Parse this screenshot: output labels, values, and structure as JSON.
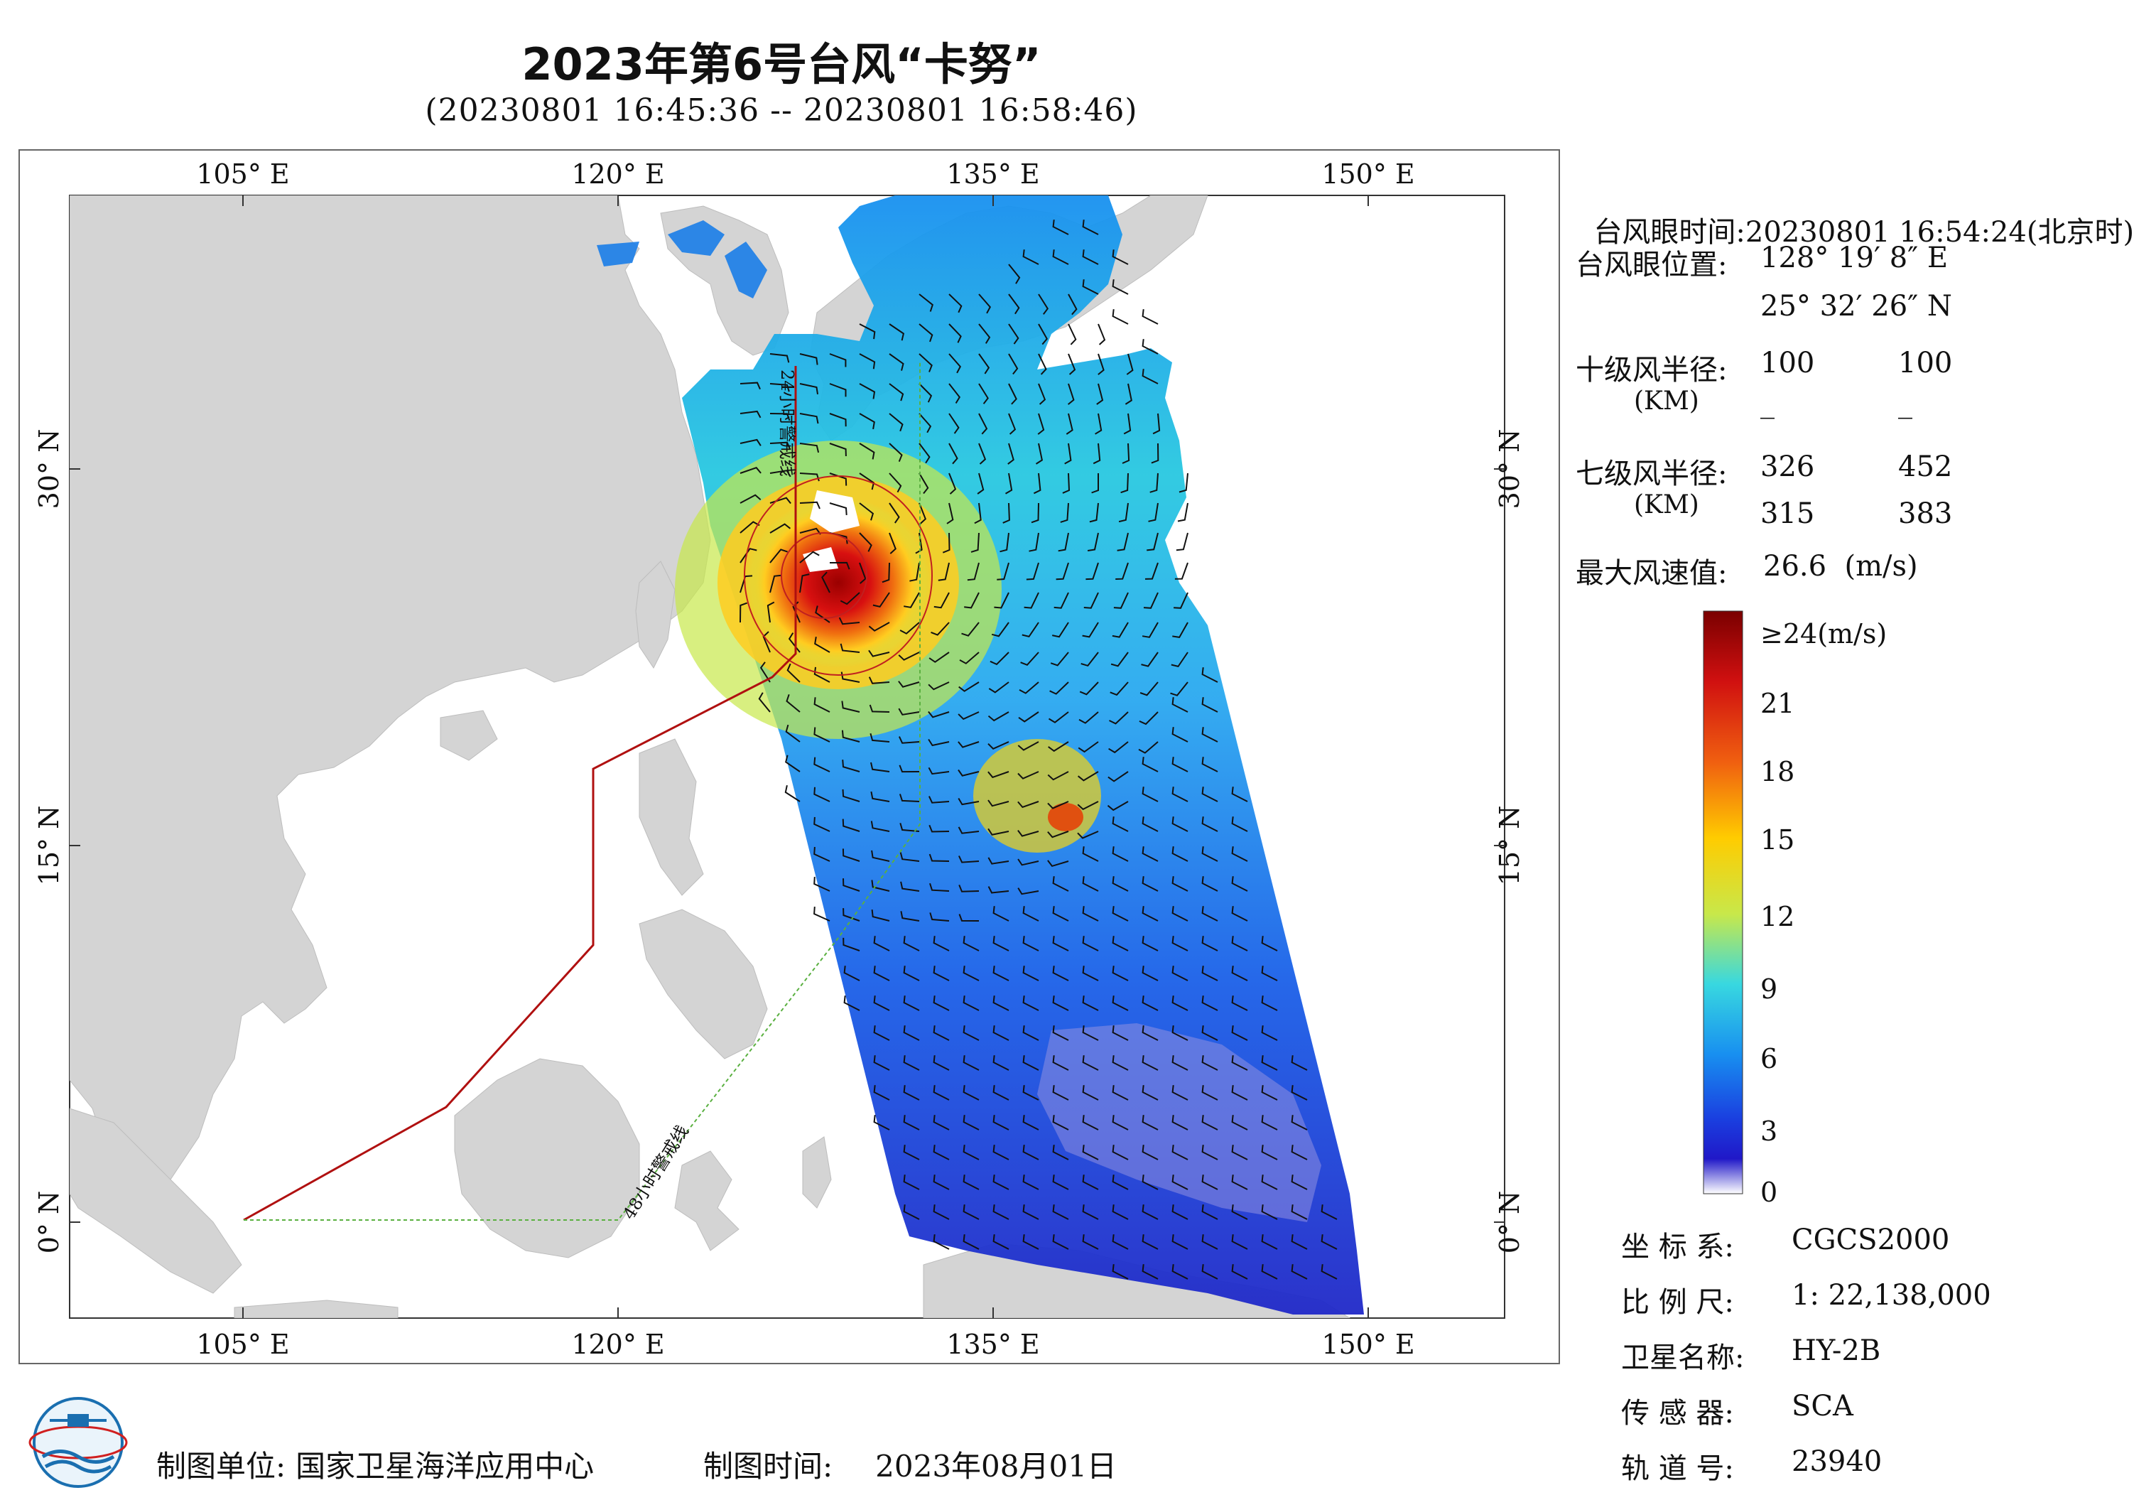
{
  "title": "2023年第6号台风“卡努”",
  "subtitle": "(20230801 16:45:36 -- 20230801 16:58:46)",
  "axes": {
    "lon_labels": [
      "105° E",
      "120° E",
      "135° E",
      "150° E"
    ],
    "lat_labels": [
      "30° N",
      "15° N",
      "0° N"
    ]
  },
  "map_annotations": {
    "line_24h": "24小时警戒线",
    "line_48h": "48小时警戒线"
  },
  "info": {
    "eye_time_label": "台风眼时间:",
    "eye_time_value": "20230801 16:54:24(北京时)",
    "eye_pos_label": "台风眼位置:",
    "eye_lon": "128° 19′ 8″ E",
    "eye_lat": "25° 32′ 26″ N",
    "r10_label": "十级风半径:",
    "r10_unit": "(KM)",
    "r10_values": [
      "100",
      "100",
      "_",
      "_"
    ],
    "r7_label": "七级风半径:",
    "r7_unit": "(KM)",
    "r7_values": [
      "326",
      "452",
      "315",
      "383"
    ],
    "max_wind_label": "最大风速值:",
    "max_wind_value": "26.6  (m/s)"
  },
  "legend": {
    "labels": [
      "≥24(m/s)",
      "21",
      "18",
      "15",
      "12",
      "9",
      "6",
      "3",
      "0"
    ],
    "colors": [
      "#7a0000",
      "#d01010",
      "#f06010",
      "#ffcc00",
      "#c8e84a",
      "#38d8e0",
      "#1890f0",
      "#1a40e0",
      "#2018c8",
      "#ffffff"
    ]
  },
  "meta": {
    "crs_label": "坐 标 系:",
    "crs_value": "CGCS2000",
    "scale_label": "比 例 尺:",
    "scale_value": "1: 22,138,000",
    "sat_label": "卫星名称:",
    "sat_value": "HY-2B",
    "sensor_label": "传 感 器:",
    "sensor_value": "SCA",
    "orbit_label": "轨 道 号:",
    "orbit_value": "23940"
  },
  "footer": {
    "org_label": "制图单位:",
    "org_value": "国家卫星海洋应用中心",
    "date_label": "制图时间:",
    "date_value": "2023年08月01日"
  },
  "colors": {
    "land": "#d4d4d4",
    "ocean": "#ffffff",
    "line_24h": "#b01010",
    "line_48h": "#5ab040",
    "typhoon_ring": "#c02020"
  }
}
